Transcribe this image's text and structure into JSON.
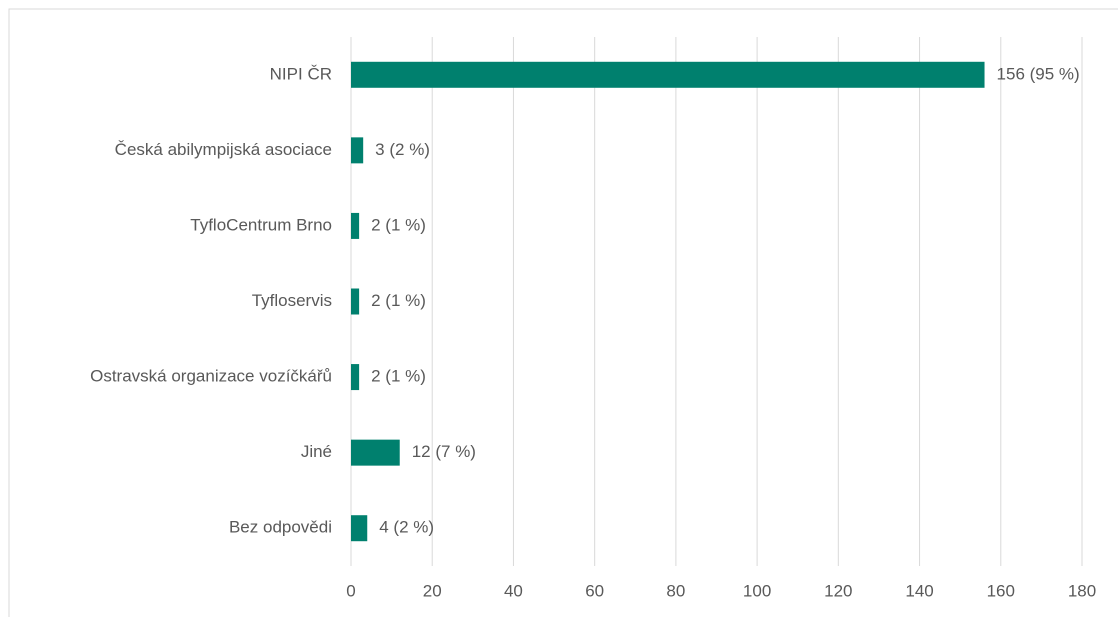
{
  "chart_data": {
    "type": "bar",
    "orientation": "horizontal",
    "categories": [
      "NIPI ČR",
      "Česká abilympijská asociace",
      "TyfloCentrum Brno",
      "Tyfloservis",
      "Ostravská organizace vozíčkářů",
      "Jiné",
      "Bez odpovědi"
    ],
    "values": [
      156,
      3,
      2,
      2,
      2,
      12,
      4
    ],
    "value_labels": [
      "156 (95 %)",
      "3 (2 %)",
      "2 (1 %)",
      "2 (1 %)",
      "2 (1 %)",
      "12 (7 %)",
      "4 (2 %)"
    ],
    "color": "#00806e",
    "xlim": [
      0,
      180
    ],
    "xticks": [
      0,
      20,
      40,
      60,
      80,
      100,
      120,
      140,
      160,
      180
    ],
    "grid": true
  }
}
